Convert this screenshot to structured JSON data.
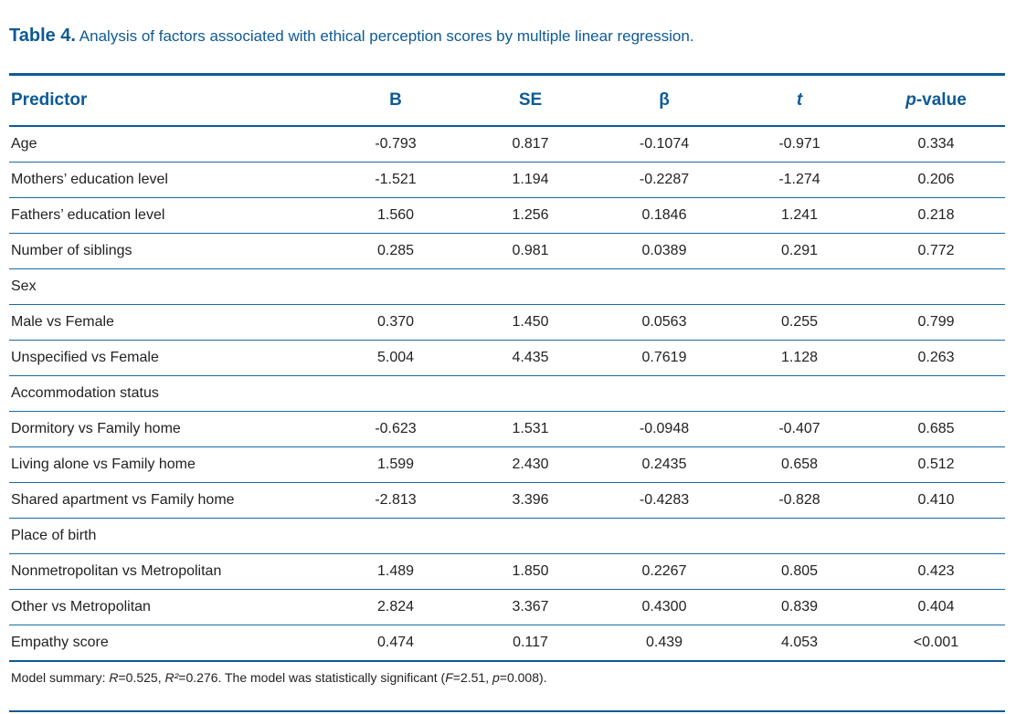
{
  "caption": {
    "label": "Table 4.",
    "text": "Analysis of factors associated with ethical perception scores by multiple linear regression."
  },
  "table": {
    "headers": {
      "predictor": "Predictor",
      "b": "B",
      "se": "SE",
      "beta": "β",
      "t": "t",
      "p_italic": "p",
      "p_rest": "-value"
    },
    "rows": [
      {
        "predictor": "Age",
        "b": "-0.793",
        "se": "0.817",
        "beta": "-0.1074",
        "t": "-0.971",
        "p": "0.334"
      },
      {
        "predictor": "Mothers’ education level",
        "b": "-1.521",
        "se": "1.194",
        "beta": "-0.2287",
        "t": "-1.274",
        "p": "0.206"
      },
      {
        "predictor": "Fathers’ education level",
        "b": "1.560",
        "se": "1.256",
        "beta": "0.1846",
        "t": "1.241",
        "p": "0.218"
      },
      {
        "predictor": "Number of siblings",
        "b": "0.285",
        "se": "0.981",
        "beta": "0.0389",
        "t": "0.291",
        "p": "0.772"
      },
      {
        "predictor": "Sex",
        "b": "",
        "se": "",
        "beta": "",
        "t": "",
        "p": ""
      },
      {
        "predictor": "Male vs Female",
        "b": "0.370",
        "se": "1.450",
        "beta": "0.0563",
        "t": "0.255",
        "p": "0.799"
      },
      {
        "predictor": "Unspecified vs Female",
        "b": "5.004",
        "se": "4.435",
        "beta": "0.7619",
        "t": "1.128",
        "p": "0.263"
      },
      {
        "predictor": "Accommodation status",
        "b": "",
        "se": "",
        "beta": "",
        "t": "",
        "p": ""
      },
      {
        "predictor": "Dormitory vs Family home",
        "b": "-0.623",
        "se": "1.531",
        "beta": "-0.0948",
        "t": "-0.407",
        "p": "0.685"
      },
      {
        "predictor": "Living alone vs Family home",
        "b": "1.599",
        "se": "2.430",
        "beta": "0.2435",
        "t": "0.658",
        "p": "0.512"
      },
      {
        "predictor": "Shared apartment vs Family home",
        "b": "-2.813",
        "se": "3.396",
        "beta": "-0.4283",
        "t": "-0.828",
        "p": "0.410"
      },
      {
        "predictor": "Place of birth",
        "b": "",
        "se": "",
        "beta": "",
        "t": "",
        "p": ""
      },
      {
        "predictor": "Nonmetropolitan vs Metropolitan",
        "b": "1.489",
        "se": "1.850",
        "beta": "0.2267",
        "t": "0.805",
        "p": "0.423"
      },
      {
        "predictor": "Other vs Metropolitan",
        "b": "2.824",
        "se": "3.367",
        "beta": "0.4300",
        "t": "0.839",
        "p": "0.404"
      },
      {
        "predictor": "Empathy score",
        "b": "0.474",
        "se": "0.117",
        "beta": "0.439",
        "t": "4.053",
        "p": "<0.001"
      }
    ]
  },
  "note": {
    "prefix": "Model summary: ",
    "r_sym": "R",
    "r_val": "=0.525, ",
    "r2_sym": "R²",
    "r2_val": "=0.276. The model was statistically significant (",
    "f_sym": "F",
    "f_val": "=2.51, ",
    "p_sym": "p",
    "p_val": "=0.008)."
  },
  "colors": {
    "accent": "#0d5a96",
    "text": "#222222",
    "rule": "#1a6aa5"
  }
}
